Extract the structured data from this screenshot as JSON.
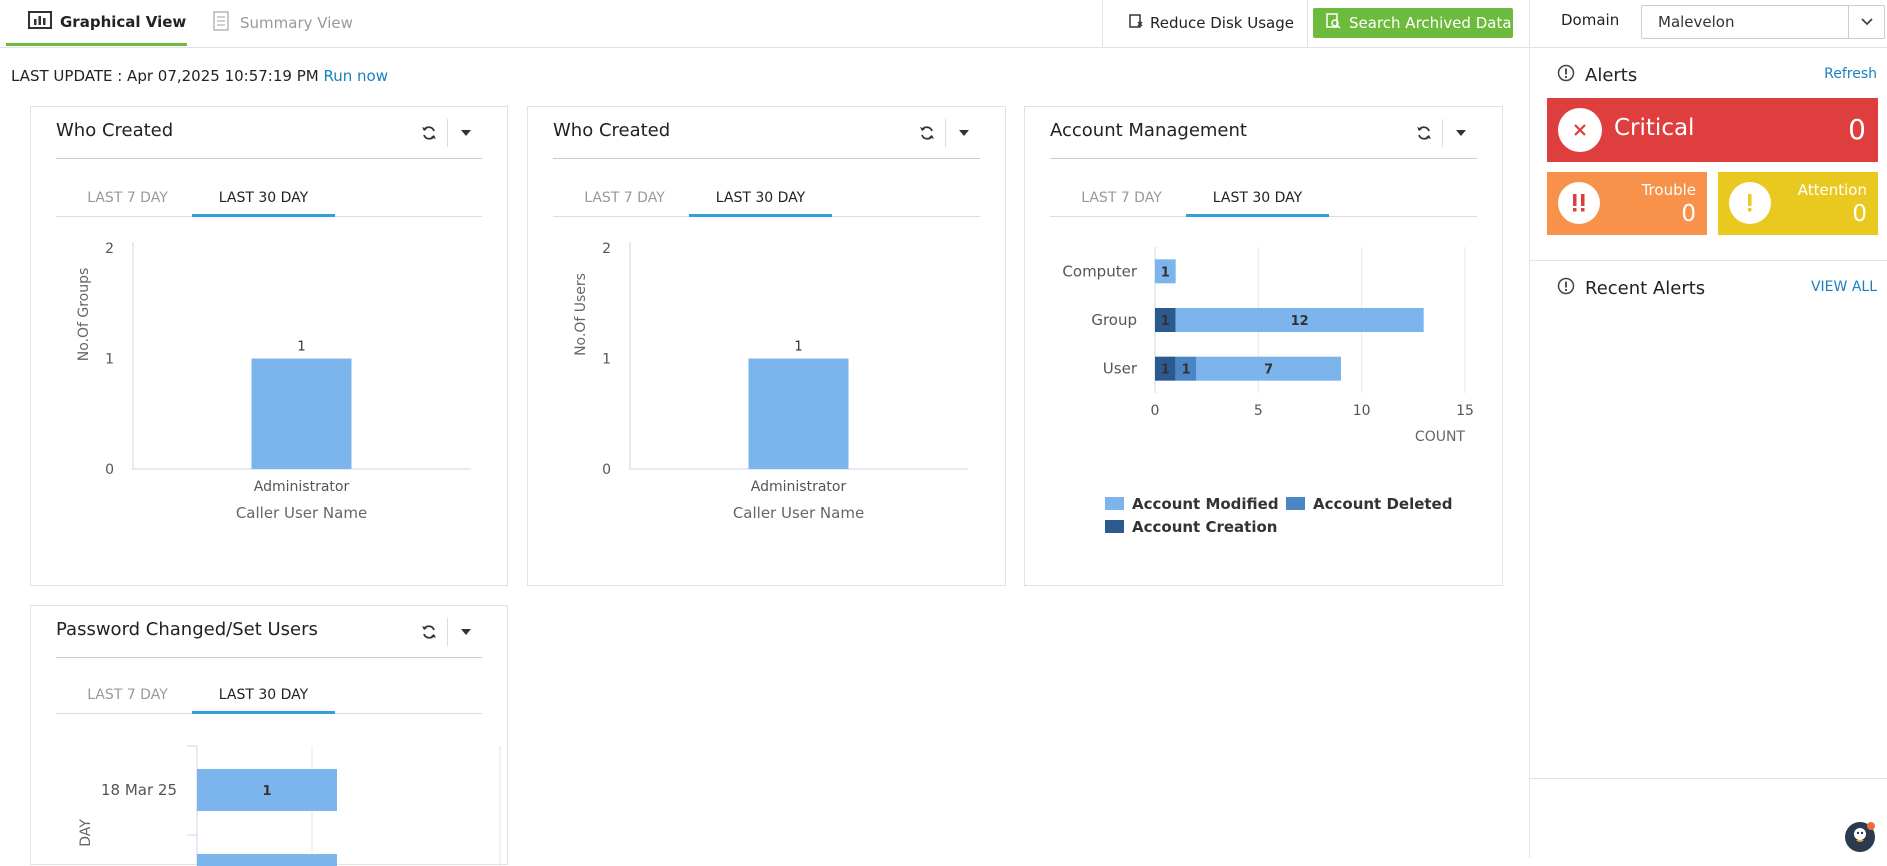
{
  "tabs": {
    "graphical": "Graphical View",
    "summary": "Summary View"
  },
  "toolbar": {
    "reduce_disk": "Reduce Disk Usage",
    "search_archived": "Search Archived Data",
    "domain_label": "Domain",
    "domain_value": "Malevelon"
  },
  "last_update": {
    "label": "LAST UPDATE : Apr 07,2025 10:57:19 PM",
    "run_now": "Run now"
  },
  "widgets": {
    "w1": {
      "title": "Who Created",
      "tab1": "LAST 7 DAY",
      "tab2": "LAST 30 DAY"
    },
    "w2": {
      "title": "Who Created",
      "tab1": "LAST 7 DAY",
      "tab2": "LAST 30 DAY"
    },
    "w3": {
      "title": "Account Management",
      "tab1": "LAST 7 DAY",
      "tab2": "LAST 30 DAY"
    },
    "w4": {
      "title": "Password Changed/Set Users",
      "tab1": "LAST 7 DAY",
      "tab2": "LAST 30 DAY"
    }
  },
  "alerts": {
    "title": "Alerts",
    "refresh": "Refresh",
    "critical_label": "Critical",
    "critical_count": "0",
    "trouble_label": "Trouble",
    "trouble_count": "0",
    "attention_label": "Attention",
    "attention_count": "0",
    "recent_title": "Recent Alerts",
    "view_all": "VIEW ALL"
  },
  "colors": {
    "accent_green": "#6cbb3c",
    "tab_blue": "#2ea0e0",
    "bar_light": "#7cb5ec",
    "bar_mid": "#4a86c5",
    "bar_dark": "#2c5a8f",
    "critical": "#df3e3e",
    "trouble": "#f8924a",
    "attention": "#e9c91f"
  },
  "chart_data": [
    {
      "type": "bar",
      "categories": [
        "Administrator"
      ],
      "values": [
        1
      ],
      "xlabel": "Caller User Name",
      "ylabel": "No.Of Groups",
      "ylim": [
        0,
        2
      ],
      "yticks": [
        "0",
        "1",
        "2"
      ],
      "data_labels": [
        "1"
      ]
    },
    {
      "type": "bar",
      "categories": [
        "Administrator"
      ],
      "values": [
        1
      ],
      "xlabel": "Caller User Name",
      "ylabel": "No.Of Users",
      "ylim": [
        0,
        2
      ],
      "yticks": [
        "0",
        "1",
        "2"
      ],
      "data_labels": [
        "1"
      ]
    },
    {
      "type": "bar",
      "orientation": "horizontal",
      "stacked": true,
      "categories": [
        "Computer",
        "Group",
        "User"
      ],
      "series": [
        {
          "name": "Account Creation",
          "values": [
            0,
            1,
            1
          ],
          "color": "#2c5a8f"
        },
        {
          "name": "Account Deleted",
          "values": [
            0,
            0,
            1
          ],
          "color": "#4a86c5"
        },
        {
          "name": "Account Modified",
          "values": [
            1,
            12,
            7
          ],
          "color": "#7cb5ec"
        }
      ],
      "xlabel": "COUNT",
      "xlim": [
        0,
        15
      ],
      "xticks": [
        "0",
        "5",
        "10",
        "15"
      ],
      "legend": "bottom",
      "legend_order": [
        "Account Modified",
        "Account Deleted",
        "Account Creation"
      ]
    },
    {
      "type": "bar",
      "orientation": "horizontal",
      "categories": [
        "18 Mar 25"
      ],
      "values": [
        1
      ],
      "ylabel": "DAY",
      "data_labels": [
        "1"
      ]
    }
  ]
}
